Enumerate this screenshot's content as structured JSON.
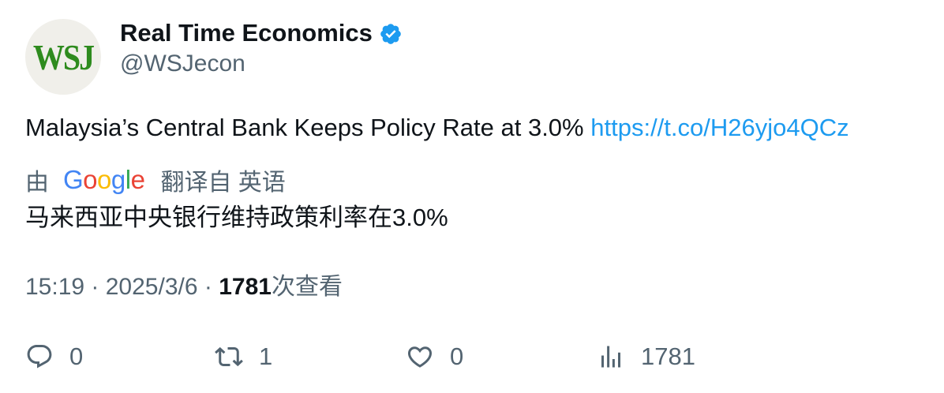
{
  "author": {
    "avatar_text": "WSJ",
    "display_name": "Real Time Economics",
    "handle": "@WSJecon",
    "verified": true
  },
  "tweet": {
    "text": "Malaysia’s Central Bank Keeps Policy Rate at 3.0%",
    "link": "https://t.co/H26yjo4QCz"
  },
  "translation": {
    "by_label": "由",
    "provider_letters": [
      "G",
      "o",
      "o",
      "g",
      "l",
      "e"
    ],
    "translated_from_label": "翻译自 英语",
    "translated_text": "马来西亚中央银行维持政策利率在3.0%"
  },
  "meta": {
    "time": "15:19",
    "separator": " · ",
    "date": "2025/3/6",
    "views": "1781",
    "views_suffix": "次查看"
  },
  "actions": {
    "reply_count": "0",
    "retweet_count": "1",
    "like_count": "0",
    "views_count": "1781"
  },
  "colors": {
    "text_primary": "#0f1419",
    "text_secondary": "#536471",
    "link": "#1d9bf0",
    "verified": "#1d9bf0",
    "wsj_logo": "#2e8b1e",
    "avatar_bg": "#f0efea",
    "google_blue": "#4285f4",
    "google_red": "#ea4335",
    "google_yellow": "#fbbc05",
    "google_green": "#34a853"
  },
  "icons": {
    "reply": "reply-icon",
    "retweet": "retweet-icon",
    "like": "heart-icon",
    "views": "bar-chart-icon",
    "verified": "verified-badge-icon"
  }
}
